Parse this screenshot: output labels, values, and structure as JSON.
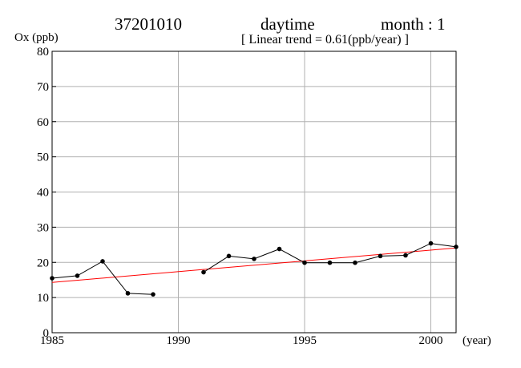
{
  "header": {
    "station": "37201010",
    "period": "daytime",
    "month": "month : 1",
    "trend": "[ Linear trend = 0.61(ppb/year) ]"
  },
  "chart_data": {
    "type": "line",
    "xlabel": "(year)",
    "ylabel": "Ox (ppb)",
    "xlim": [
      1985,
      2001
    ],
    "ylim": [
      0,
      80
    ],
    "xticks": [
      1985,
      1990,
      1995,
      2000
    ],
    "yticks": [
      0,
      10,
      20,
      30,
      40,
      50,
      60,
      70,
      80
    ],
    "grid": true,
    "series": [
      {
        "color": "#000000",
        "segments": [
          [
            [
              1985,
              15.5
            ],
            [
              1986,
              16.2
            ],
            [
              1987,
              20.3
            ],
            [
              1988,
              11.2
            ],
            [
              1989,
              10.9
            ]
          ],
          [
            [
              1991,
              17.2
            ],
            [
              1992,
              21.8
            ],
            [
              1993,
              21.0
            ],
            [
              1994,
              23.8
            ],
            [
              1995,
              19.9
            ],
            [
              1996,
              19.9
            ],
            [
              1997,
              19.9
            ],
            [
              1998,
              21.8
            ],
            [
              1999,
              22.0
            ],
            [
              2000,
              25.4
            ],
            [
              2001,
              24.4
            ]
          ]
        ]
      }
    ],
    "trend_line": {
      "color": "#ff0000",
      "points": [
        [
          1985,
          14.3
        ],
        [
          2001,
          24.1
        ]
      ]
    }
  }
}
